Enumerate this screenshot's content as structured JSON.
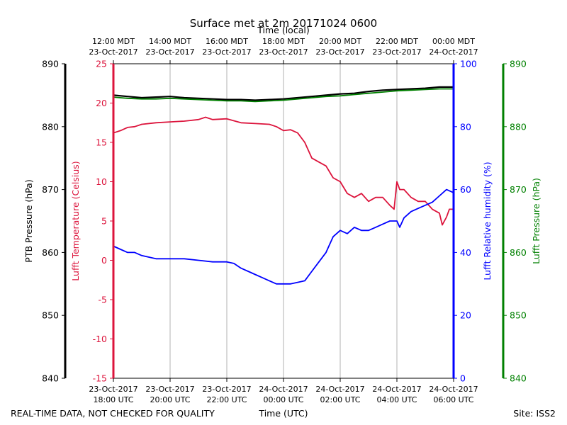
{
  "chart_data": {
    "type": "line",
    "title": "Surface met at 2m 20171024 0600",
    "top_axis_label": "Time (local)",
    "bottom_axis_label": "Time (UTC)",
    "footer_left": "REAL-TIME DATA, NOT CHECKED FOR QUALITY",
    "footer_right": "Site: ISS2",
    "x_range_hours": [
      0,
      12
    ],
    "bottom_ticks": [
      {
        "h": 0,
        "l1": "23-Oct-2017",
        "l2": "18:00 UTC"
      },
      {
        "h": 2,
        "l1": "23-Oct-2017",
        "l2": "20:00 UTC"
      },
      {
        "h": 4,
        "l1": "23-Oct-2017",
        "l2": "22:00 UTC"
      },
      {
        "h": 6,
        "l1": "24-Oct-2017",
        "l2": "00:00 UTC"
      },
      {
        "h": 8,
        "l1": "24-Oct-2017",
        "l2": "02:00 UTC"
      },
      {
        "h": 10,
        "l1": "24-Oct-2017",
        "l2": "04:00 UTC"
      },
      {
        "h": 12,
        "l1": "24-Oct-2017",
        "l2": "06:00 UTC"
      }
    ],
    "top_ticks": [
      {
        "h": 0,
        "l1": "12:00 MDT",
        "l2": "23-Oct-2017"
      },
      {
        "h": 2,
        "l1": "14:00 MDT",
        "l2": "23-Oct-2017"
      },
      {
        "h": 4,
        "l1": "16:00 MDT",
        "l2": "23-Oct-2017"
      },
      {
        "h": 6,
        "l1": "18:00 MDT",
        "l2": "23-Oct-2017"
      },
      {
        "h": 8,
        "l1": "20:00 MDT",
        "l2": "23-Oct-2017"
      },
      {
        "h": 10,
        "l1": "22:00 MDT",
        "l2": "23-Oct-2017"
      },
      {
        "h": 12,
        "l1": "00:00 MDT",
        "l2": "24-Oct-2017"
      }
    ],
    "axes": {
      "ptb_pressure": {
        "label": "PTB Pressure (hPa)",
        "color": "#000000",
        "range": [
          840,
          890
        ],
        "ticks": [
          840,
          850,
          860,
          870,
          880,
          890
        ]
      },
      "temperature": {
        "label": "Lufft Temperature (Celsius)",
        "color": "#dc143c",
        "range": [
          -15,
          25
        ],
        "ticks": [
          -15,
          -10,
          -5,
          0,
          5,
          10,
          15,
          20,
          25
        ]
      },
      "humidity": {
        "label": "Lufft Relative humidity (%)",
        "color": "#0000ff",
        "range": [
          0,
          100
        ],
        "ticks": [
          0,
          20,
          40,
          60,
          80,
          100
        ]
      },
      "lufft_pressure": {
        "label": "Lufft Pressure (hPa)",
        "color": "#008000",
        "range": [
          840,
          890
        ],
        "ticks": [
          840,
          850,
          860,
          870,
          880,
          890
        ]
      }
    },
    "series": [
      {
        "name": "PTB Pressure",
        "axis": "ptb_pressure",
        "color": "#000000",
        "x": [
          0,
          0.5,
          1,
          1.5,
          2,
          2.5,
          3,
          3.5,
          4,
          4.5,
          5,
          5.5,
          6,
          6.5,
          7,
          7.5,
          8,
          8.5,
          9,
          9.5,
          10,
          10.5,
          11,
          11.5,
          12
        ],
        "y": [
          885.0,
          884.8,
          884.6,
          884.7,
          884.8,
          884.6,
          884.5,
          884.4,
          884.3,
          884.3,
          884.2,
          884.3,
          884.4,
          884.6,
          884.8,
          885.0,
          885.2,
          885.3,
          885.6,
          885.8,
          885.9,
          886.0,
          886.1,
          886.3,
          886.3
        ]
      },
      {
        "name": "Lufft Pressure",
        "axis": "lufft_pressure",
        "color": "#008000",
        "x": [
          0,
          0.5,
          1,
          1.5,
          2,
          2.5,
          3,
          3.5,
          4,
          4.5,
          5,
          5.5,
          6,
          6.5,
          7,
          7.5,
          8,
          8.5,
          9,
          9.5,
          10,
          10.5,
          11,
          11.5,
          12
        ],
        "y": [
          884.7,
          884.5,
          884.4,
          884.4,
          884.5,
          884.4,
          884.3,
          884.2,
          884.1,
          884.1,
          884.0,
          884.1,
          884.2,
          884.4,
          884.6,
          884.8,
          884.9,
          885.1,
          885.3,
          885.5,
          885.7,
          885.8,
          885.9,
          886.0,
          886.0
        ]
      },
      {
        "name": "Lufft Temperature",
        "axis": "temperature",
        "color": "#dc143c",
        "x": [
          0,
          0.25,
          0.5,
          0.75,
          1,
          1.5,
          2,
          2.5,
          3,
          3.25,
          3.5,
          4,
          4.5,
          5,
          5.5,
          5.75,
          6,
          6.25,
          6.5,
          6.75,
          7,
          7.25,
          7.5,
          7.75,
          8,
          8.25,
          8.5,
          8.75,
          9,
          9.25,
          9.5,
          9.75,
          9.9,
          10,
          10.1,
          10.25,
          10.5,
          10.75,
          11,
          11.25,
          11.5,
          11.6,
          11.75,
          11.85,
          12
        ],
        "y": [
          16.2,
          16.5,
          16.9,
          17.0,
          17.3,
          17.5,
          17.6,
          17.7,
          17.9,
          18.2,
          17.9,
          18.0,
          17.5,
          17.4,
          17.3,
          17.0,
          16.5,
          16.6,
          16.2,
          15.0,
          13.0,
          12.5,
          12.0,
          10.5,
          10.0,
          8.5,
          8.0,
          8.5,
          7.5,
          8.0,
          8.0,
          7.0,
          6.5,
          10.0,
          9.0,
          9.0,
          8.0,
          7.5,
          7.5,
          6.5,
          6.0,
          4.5,
          5.5,
          6.5,
          6.5
        ]
      },
      {
        "name": "Lufft Relative humidity",
        "axis": "humidity",
        "color": "#0000ff",
        "x": [
          0,
          0.25,
          0.5,
          0.75,
          1,
          1.5,
          2,
          2.5,
          3,
          3.5,
          4,
          4.25,
          4.5,
          4.75,
          5,
          5.25,
          5.5,
          5.75,
          6,
          6.25,
          6.5,
          6.75,
          7,
          7.25,
          7.5,
          7.75,
          8,
          8.25,
          8.5,
          8.75,
          9,
          9.25,
          9.5,
          9.75,
          10,
          10.1,
          10.25,
          10.5,
          10.75,
          11,
          11.25,
          11.5,
          11.75,
          12
        ],
        "y": [
          42,
          41,
          40,
          40,
          39,
          38,
          38,
          38,
          37.5,
          37,
          37,
          36.5,
          35,
          34,
          33,
          32,
          31,
          30,
          30,
          30,
          30.5,
          31,
          34,
          37,
          40,
          45,
          47,
          46,
          48,
          47,
          47,
          48,
          49,
          50,
          50,
          48,
          51,
          53,
          54,
          55,
          56,
          58,
          60,
          59
        ]
      }
    ]
  }
}
